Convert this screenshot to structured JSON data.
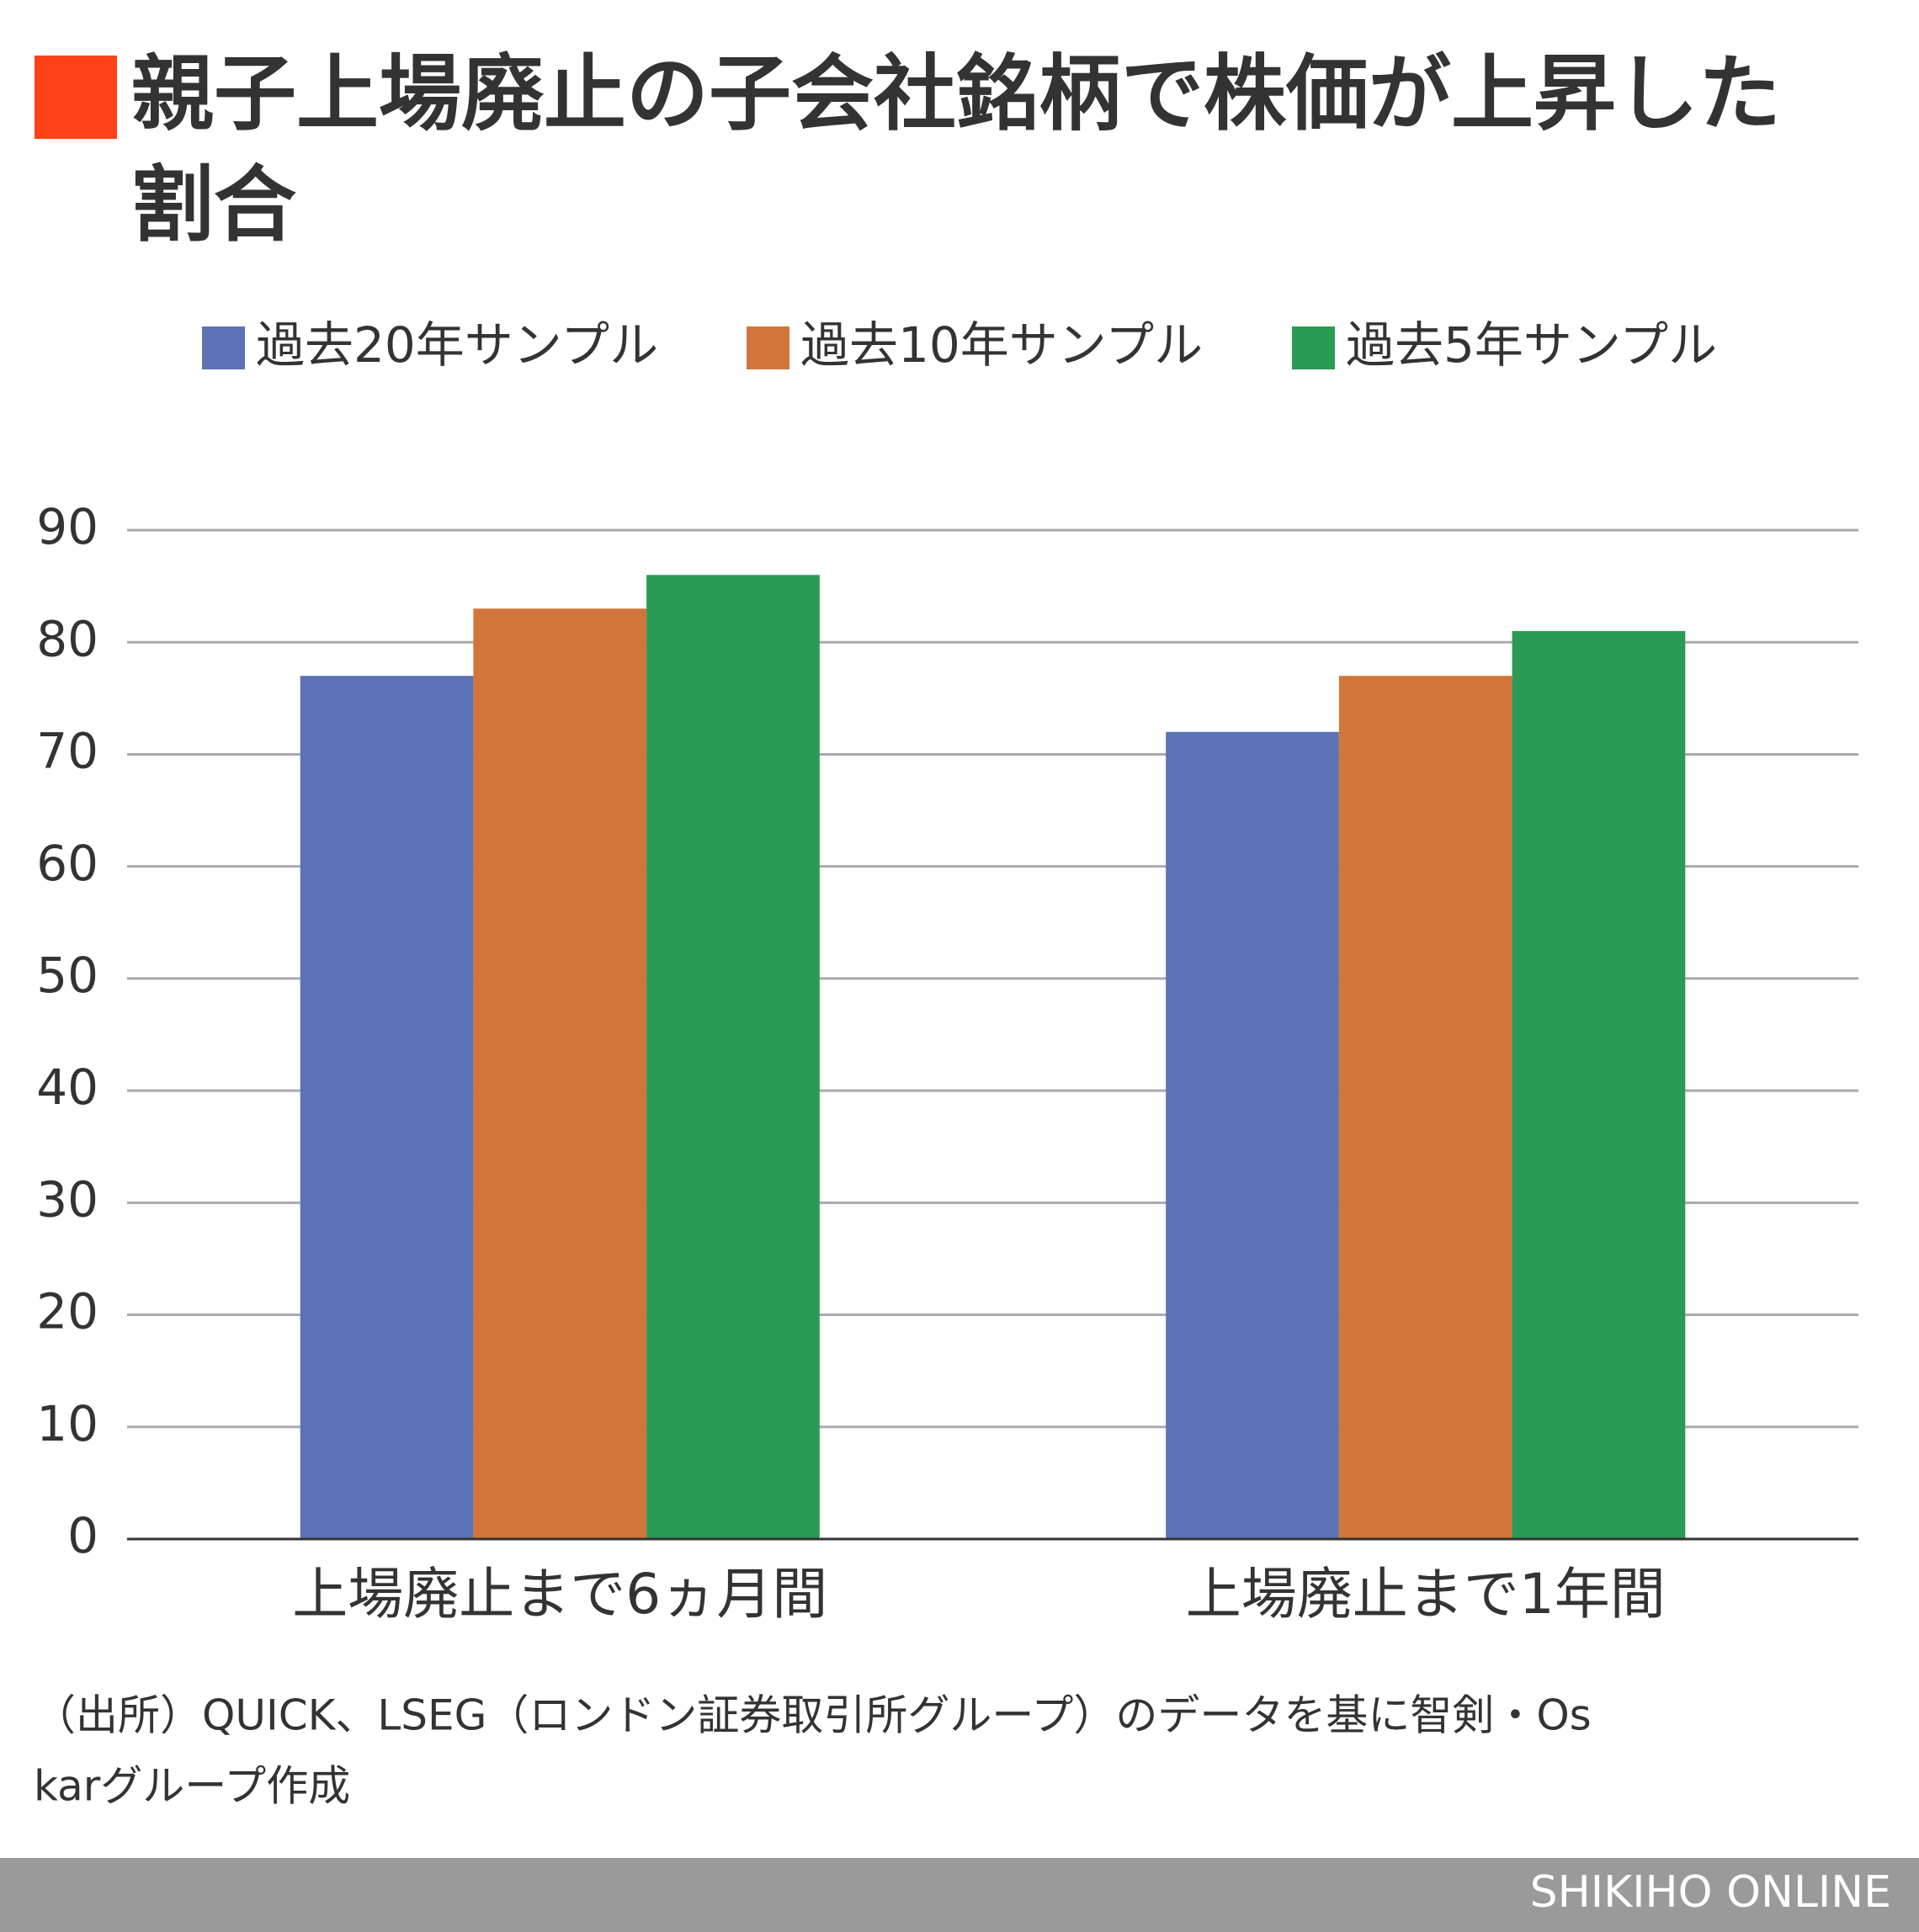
{
  "chart_data": {
    "type": "bar",
    "title": [
      "親子上場廃止の子会社銘柄で株価が上昇した",
      "割合"
    ],
    "categories": [
      "上場廃止まで6ヵ月間",
      "上場廃止まで1年間"
    ],
    "series": [
      {
        "name": "過去20年サンプル",
        "color": "#5b73b5",
        "values": [
          77,
          72
        ]
      },
      {
        "name": "過去10年サンプル",
        "color": "#d2753a",
        "values": [
          83,
          77
        ]
      },
      {
        "name": "過去5年サンプル",
        "color": "#2a9a55",
        "values": [
          86,
          81
        ]
      }
    ],
    "ylim": [
      0,
      90
    ],
    "yticks": [
      0,
      10,
      20,
      30,
      40,
      50,
      60,
      70,
      80,
      90
    ],
    "grid": true,
    "legend": "top",
    "source": [
      "（出所）QUICK、LSEG（ロンドン証券取引所グループ）のデータを基に智剣・Os",
      "karグループ作成"
    ],
    "brand": "SHIKIHO ONLINE"
  }
}
